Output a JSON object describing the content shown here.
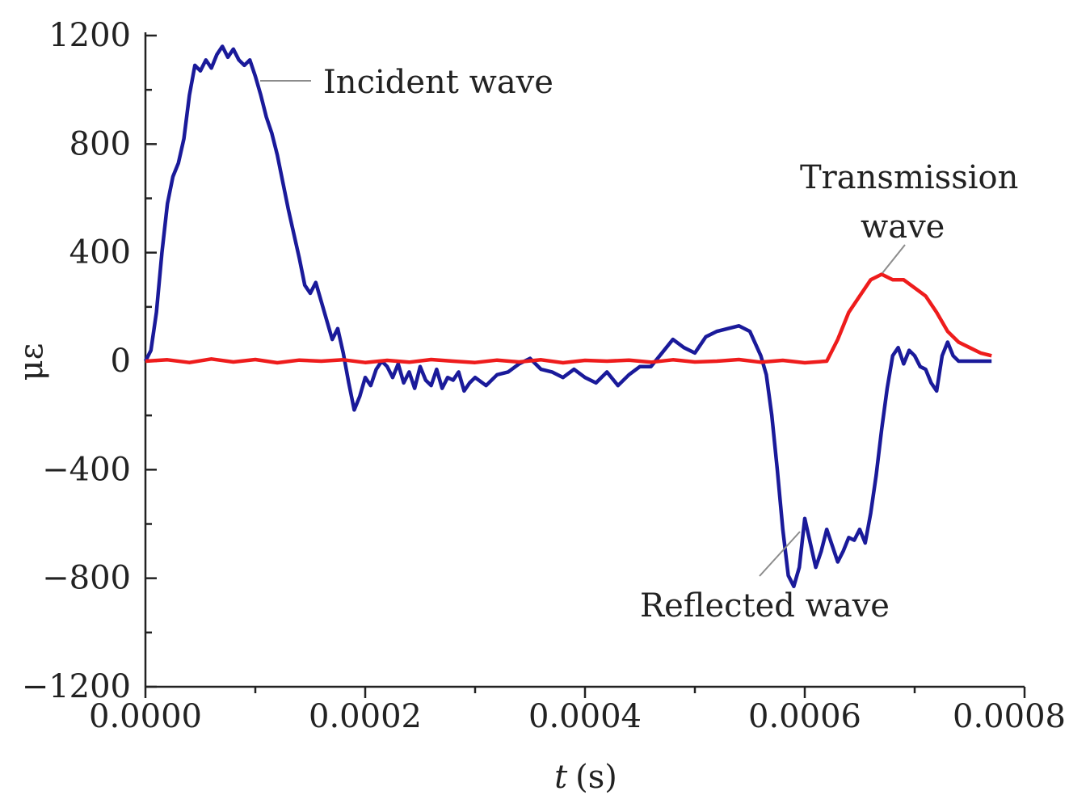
{
  "chart_data": {
    "type": "line",
    "title": "",
    "xlabel_italic": "t",
    "xlabel_unit": "(s)",
    "ylabel": "με",
    "xlim": [
      0,
      0.0008
    ],
    "ylim": [
      -1200,
      1200
    ],
    "x_ticks": [
      0,
      0.0002,
      0.0004,
      0.0006,
      0.0008
    ],
    "x_tick_labels": [
      "0.0000",
      "0.0002",
      "0.0004",
      "0.0006",
      "0.0008"
    ],
    "y_ticks": [
      -1200,
      -800,
      -400,
      0,
      400,
      800,
      1200
    ],
    "y_tick_labels": [
      "−1200",
      "−800",
      "−400",
      "0",
      "400",
      "800",
      "1200"
    ],
    "grid": false,
    "series": [
      {
        "name": "Incident/Reflected wave",
        "color": "#1a1a9a",
        "x": [
          0.0,
          5e-06,
          1e-05,
          1.5e-05,
          2e-05,
          2.5e-05,
          3e-05,
          3.5e-05,
          4e-05,
          4.5e-05,
          5e-05,
          5.5e-05,
          6e-05,
          6.5e-05,
          7e-05,
          7.5e-05,
          8e-05,
          8.5e-05,
          9e-05,
          9.5e-05,
          0.0001,
          0.000105,
          0.00011,
          0.000115,
          0.00012,
          0.000125,
          0.00013,
          0.000135,
          0.00014,
          0.000145,
          0.00015,
          0.000155,
          0.00016,
          0.000165,
          0.00017,
          0.000175,
          0.00018,
          0.000185,
          0.00019,
          0.000195,
          0.0002,
          0.000205,
          0.00021,
          0.000215,
          0.00022,
          0.000225,
          0.00023,
          0.000235,
          0.00024,
          0.000245,
          0.00025,
          0.000255,
          0.00026,
          0.000265,
          0.00027,
          0.000275,
          0.00028,
          0.000285,
          0.00029,
          0.000295,
          0.0003,
          0.00031,
          0.00032,
          0.00033,
          0.00034,
          0.00035,
          0.00036,
          0.00037,
          0.00038,
          0.00039,
          0.0004,
          0.00041,
          0.00042,
          0.00043,
          0.00044,
          0.00045,
          0.00046,
          0.00047,
          0.00048,
          0.00049,
          0.0005,
          0.00051,
          0.00052,
          0.00053,
          0.00054,
          0.00055,
          0.00056,
          0.000565,
          0.00057,
          0.000575,
          0.00058,
          0.000585,
          0.00059,
          0.000595,
          0.0006,
          0.000605,
          0.00061,
          0.000615,
          0.00062,
          0.000625,
          0.00063,
          0.000635,
          0.00064,
          0.000645,
          0.00065,
          0.000655,
          0.00066,
          0.000665,
          0.00067,
          0.000675,
          0.00068,
          0.000685,
          0.00069,
          0.000695,
          0.0007,
          0.000705,
          0.00071,
          0.000715,
          0.00072,
          0.000725,
          0.00073,
          0.000735,
          0.00074,
          0.000745,
          0.00075,
          0.000755,
          0.00076,
          0.000765,
          0.00077
        ],
        "values": [
          0,
          40,
          180,
          400,
          580,
          680,
          730,
          820,
          980,
          1090,
          1070,
          1110,
          1080,
          1130,
          1160,
          1120,
          1150,
          1110,
          1090,
          1110,
          1050,
          980,
          900,
          840,
          760,
          660,
          560,
          470,
          380,
          280,
          250,
          290,
          220,
          150,
          80,
          120,
          30,
          -80,
          -180,
          -130,
          -60,
          -90,
          -30,
          0,
          -20,
          -60,
          -10,
          -80,
          -40,
          -100,
          -20,
          -70,
          -90,
          -30,
          -100,
          -60,
          -70,
          -40,
          -110,
          -80,
          -60,
          -90,
          -50,
          -40,
          -10,
          10,
          -30,
          -40,
          -60,
          -30,
          -60,
          -80,
          -40,
          -90,
          -50,
          -20,
          -20,
          30,
          80,
          50,
          30,
          90,
          110,
          120,
          130,
          110,
          20,
          -50,
          -200,
          -400,
          -620,
          -790,
          -830,
          -760,
          -580,
          -670,
          -760,
          -700,
          -620,
          -680,
          -740,
          -700,
          -650,
          -660,
          -620,
          -670,
          -560,
          -420,
          -250,
          -100,
          20,
          50,
          -10,
          40,
          20,
          -20,
          -30,
          -80,
          -110,
          20,
          70,
          20,
          0,
          0,
          0,
          0,
          0,
          0,
          0
        ],
        "note": "single continuous blue trace"
      },
      {
        "name": "Transmission wave",
        "color": "#ee1c1c",
        "x": [
          0.0,
          2e-05,
          4e-05,
          6e-05,
          8e-05,
          0.0001,
          0.00012,
          0.00014,
          0.00016,
          0.00018,
          0.0002,
          0.00022,
          0.00024,
          0.00026,
          0.00028,
          0.0003,
          0.00032,
          0.00034,
          0.00036,
          0.00038,
          0.0004,
          0.00042,
          0.00044,
          0.00046,
          0.00048,
          0.0005,
          0.00052,
          0.00054,
          0.00056,
          0.00058,
          0.0006,
          0.00062,
          0.00063,
          0.00064,
          0.00065,
          0.00066,
          0.00067,
          0.00068,
          0.00069,
          0.0007,
          0.00071,
          0.00072,
          0.00073,
          0.00074,
          0.00075,
          0.00076,
          0.00077
        ],
        "values": [
          0,
          5,
          -5,
          8,
          -3,
          6,
          -6,
          4,
          0,
          5,
          -5,
          3,
          -4,
          6,
          0,
          -5,
          4,
          -3,
          5,
          -6,
          3,
          0,
          4,
          -4,
          5,
          -3,
          0,
          6,
          -4,
          3,
          -6,
          0,
          80,
          180,
          240,
          300,
          320,
          300,
          300,
          270,
          240,
          180,
          110,
          70,
          50,
          30,
          20
        ]
      }
    ],
    "annotations": [
      {
        "text": "Incident wave",
        "target_x": 0.0001,
        "target_y": 1100
      },
      {
        "text": "Transmission",
        "text2": "wave",
        "target_x": 0.000675,
        "target_y": 330
      },
      {
        "text": "Reflected wave",
        "target_x": 0.0006,
        "target_y": -620
      }
    ]
  }
}
